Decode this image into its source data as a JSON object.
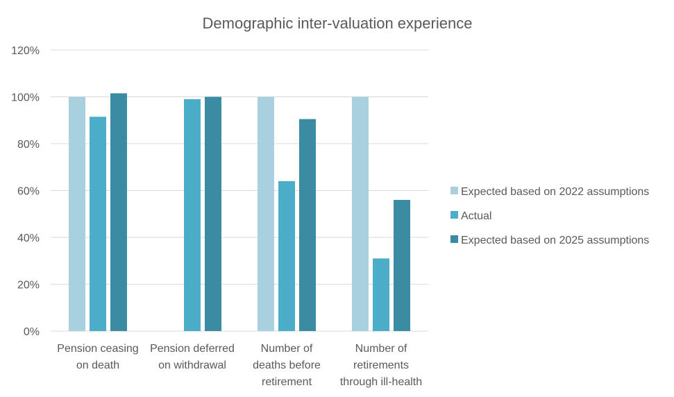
{
  "chart_data": {
    "type": "bar",
    "title": "Demographic inter-valuation experience",
    "xlabel": "",
    "ylabel": "",
    "ylim": [
      0,
      120
    ],
    "yticks": [
      0,
      20,
      40,
      60,
      80,
      100,
      120
    ],
    "ytick_labels": [
      "0%",
      "20%",
      "40%",
      "60%",
      "80%",
      "100%",
      "120%"
    ],
    "grid": true,
    "legend_position": "right",
    "categories": [
      [
        "Pension ceasing",
        "on death"
      ],
      [
        "Pension deferred",
        "on withdrawal"
      ],
      [
        "Number of",
        "deaths before",
        "retirement"
      ],
      [
        "Number of",
        "retirements",
        "through ill-health"
      ]
    ],
    "series": [
      {
        "name": "Expected based on 2022 assumptions",
        "color": "#a8d0de",
        "values": [
          100,
          null,
          100,
          100
        ]
      },
      {
        "name": "Actual",
        "color": "#4badc8",
        "values": [
          91.5,
          99,
          64,
          31
        ]
      },
      {
        "name": "Expected based on 2025 assumptions",
        "color": "#3b8ba3",
        "values": [
          101.5,
          100,
          90.5,
          56
        ]
      }
    ]
  }
}
